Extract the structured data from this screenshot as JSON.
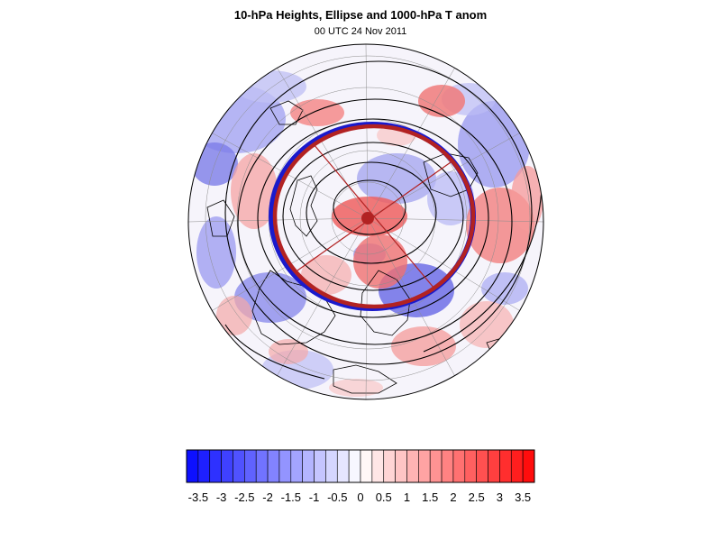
{
  "header": {
    "title": "10-hPa Heights, Ellipse and 1000-hPa T anom",
    "subtitle": "00 UTC 24 Nov 2011"
  },
  "colorbar": {
    "min": -3.5,
    "max": 3.5,
    "bin_width": 0.25,
    "low_color": "#0d10ff",
    "mid_color": "#ffffff",
    "high_color": "#ff0d0d",
    "tick_labels": [
      "-3.5",
      "-3",
      "-2.5",
      "-2",
      "-1.5",
      "-1",
      "-0.5",
      "0",
      "0.5",
      "1",
      "1.5",
      "2",
      "2.5",
      "3",
      "3.5"
    ]
  },
  "map": {
    "projection": "north-polar orthographic",
    "ellipse_color": "#b22222",
    "ellipse_outline_color": "#1a1acc",
    "height_contour_color": "#000000",
    "coastline_color": "#000000",
    "graticule_color": "#8c8c8c"
  }
}
